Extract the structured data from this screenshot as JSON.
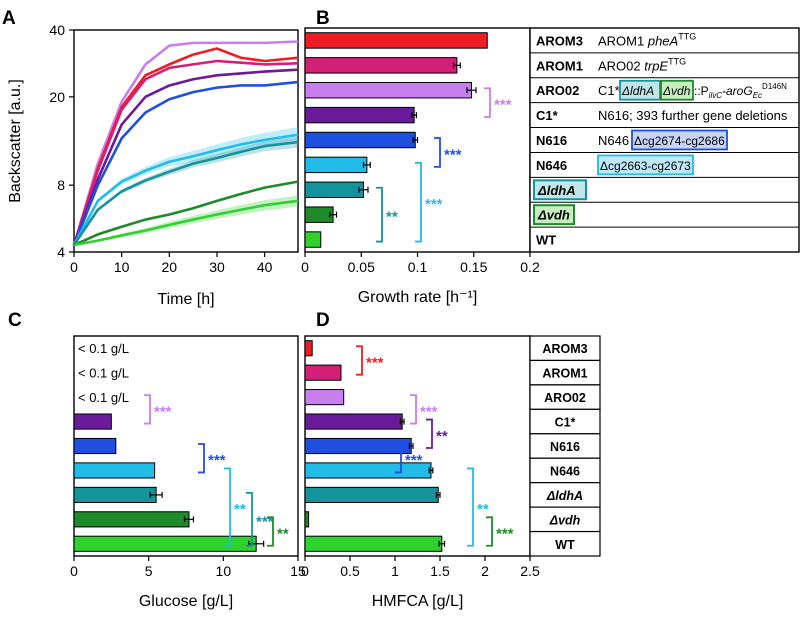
{
  "colors": {
    "AROM3": "#ee1c25",
    "AROM1": "#d31f75",
    "ARO02": "#c97ef0",
    "C1*": "#6a1b9a",
    "N616": "#1f4fe0",
    "N646": "#22bce8",
    "dldhA": "#15939d",
    "dvdh": "#1e8a2a",
    "WT": "#2ed12e"
  },
  "panel_labels": [
    "A",
    "B",
    "C",
    "D"
  ],
  "strain_table": {
    "rows": [
      {
        "key": "AROM3",
        "name": "AROM3",
        "pre": "AROM1 ",
        "gene": "pheA",
        "sup": "TTG"
      },
      {
        "key": "AROM1",
        "name": "AROM1",
        "pre": "ARO02 ",
        "gene": "trpE",
        "sup": "TTG"
      },
      {
        "key": "ARO02",
        "name": "ARO02",
        "pre": "C1*",
        "box1": "ΔldhA",
        "box2": "Δvdh",
        "post1": "::P",
        "sub1": "ilvC",
        "mid": "-aroG",
        "sub2": "Ec",
        "sup": "D146N"
      },
      {
        "key": "C1*",
        "name": "C1*",
        "text": "N616; 393 further gene deletions"
      },
      {
        "key": "N616",
        "name": "N616",
        "pre": "N646 ",
        "box": "Δcg2674-cg2686"
      },
      {
        "key": "N646",
        "name": "N646",
        "box": "Δcg2663-cg2673"
      },
      {
        "key": "dldhA",
        "name": "ΔldhA"
      },
      {
        "key": "dvdh",
        "name": "Δvdh"
      },
      {
        "key": "WT",
        "name": "WT"
      }
    ]
  },
  "chart_data": [
    {
      "panel": "A",
      "type": "line",
      "xlabel": "Time [h]",
      "ylabel": "Backscatter [a.u.]",
      "xlim": [
        0,
        47
      ],
      "ylim": [
        4,
        40
      ],
      "yscale": "log",
      "xticks": [
        0,
        10,
        20,
        30,
        40
      ],
      "yticks": [
        4,
        8,
        20,
        40
      ],
      "series": [
        {
          "name": "ARO02",
          "x": [
            0,
            5,
            10,
            15,
            20,
            25,
            30,
            35,
            40,
            47
          ],
          "values": [
            4.3,
            10,
            19,
            28,
            34,
            35,
            35,
            35,
            35,
            35.5
          ]
        },
        {
          "name": "AROM3",
          "x": [
            0,
            5,
            10,
            15,
            20,
            25,
            30,
            35,
            40,
            47
          ],
          "values": [
            4.3,
            9.5,
            18,
            25,
            28,
            31,
            33,
            30,
            29,
            30
          ]
        },
        {
          "name": "AROM1",
          "x": [
            0,
            5,
            10,
            15,
            20,
            25,
            30,
            35,
            40,
            47
          ],
          "values": [
            4.3,
            9.3,
            17.5,
            24,
            27,
            28,
            29,
            28.5,
            28,
            28.3
          ]
        },
        {
          "name": "C1*",
          "x": [
            0,
            5,
            10,
            15,
            20,
            25,
            30,
            35,
            40,
            47
          ],
          "values": [
            4.3,
            8.5,
            15,
            20,
            22.5,
            24,
            25,
            25.5,
            26,
            26.5
          ]
        },
        {
          "name": "N616",
          "x": [
            0,
            5,
            10,
            15,
            20,
            25,
            30,
            35,
            40,
            47
          ],
          "values": [
            4.3,
            8,
            13,
            17,
            19.5,
            21,
            22,
            22.5,
            22.5,
            23.3
          ]
        },
        {
          "name": "N646",
          "x": [
            0,
            5,
            10,
            15,
            20,
            25,
            30,
            35,
            40,
            47
          ],
          "values": [
            4.3,
            6.8,
            8.3,
            9.3,
            10.2,
            10.8,
            11.5,
            12.2,
            12.8,
            13.5
          ]
        },
        {
          "name": "dldhA",
          "x": [
            0,
            5,
            10,
            15,
            20,
            25,
            30,
            35,
            40,
            47
          ],
          "values": [
            4.3,
            6.2,
            7.5,
            8.4,
            9.2,
            10,
            10.6,
            11.3,
            12,
            12.5
          ]
        },
        {
          "name": "dvdh",
          "x": [
            0,
            5,
            10,
            15,
            20,
            25,
            30,
            35,
            40,
            47
          ],
          "values": [
            4.3,
            4.8,
            5.2,
            5.6,
            5.9,
            6.3,
            6.8,
            7.3,
            7.8,
            8.3
          ]
        },
        {
          "name": "WT",
          "x": [
            0,
            5,
            10,
            15,
            20,
            25,
            30,
            35,
            40,
            47
          ],
          "values": [
            4.3,
            4.5,
            4.75,
            5.0,
            5.3,
            5.6,
            5.9,
            6.2,
            6.5,
            6.8
          ]
        }
      ],
      "bands": {
        "N646": 1.1,
        "dldhA": 0.7,
        "WT": 0.4
      }
    },
    {
      "panel": "B",
      "type": "bar",
      "orientation": "horizontal",
      "xlabel": "Growth rate [h⁻¹]",
      "xlim": [
        0,
        0.2
      ],
      "xticks": [
        "0",
        "0.05",
        "0.1",
        "0.15",
        "0.2"
      ],
      "categories": [
        "AROM3",
        "AROM1",
        "ARO02",
        "C1*",
        "N616",
        "N646",
        "dldhA",
        "dvdh",
        "WT"
      ],
      "values": [
        0.162,
        0.135,
        0.148,
        0.097,
        0.098,
        0.055,
        0.052,
        0.025,
        0.014
      ],
      "errors": [
        0.0,
        0.003,
        0.004,
        0.002,
        0.002,
        0.003,
        0.004,
        0.003,
        0.0
      ],
      "significance": [
        {
          "from": "ARO02",
          "to": "C1*",
          "label": "***",
          "color": "#c97ef0"
        },
        {
          "from": "N616",
          "to": "N646",
          "label": "***",
          "color": "#1f4fe0"
        },
        {
          "from": "N646",
          "to": "WT",
          "label": "***",
          "color": "#22bce8"
        },
        {
          "from": "dldhA",
          "to": "WT",
          "label": "**",
          "color": "#15939d"
        }
      ]
    },
    {
      "panel": "C",
      "type": "bar",
      "orientation": "horizontal",
      "xlabel": "Glucose [g/L]",
      "xlim": [
        0,
        15
      ],
      "xticks": [
        "0",
        "5",
        "10",
        "15"
      ],
      "categories": [
        "AROM3",
        "AROM1",
        "ARO02",
        "C1*",
        "N616",
        "N646",
        "dldhA",
        "dvdh",
        "WT"
      ],
      "values": [
        0,
        0,
        0,
        2.5,
        2.8,
        5.4,
        5.5,
        7.7,
        12.2
      ],
      "errors": [
        0,
        0,
        0,
        0,
        0,
        0,
        0.4,
        0.3,
        0.5
      ],
      "below_labels": [
        {
          "row": "AROM3",
          "text": "< 0.1 g/L"
        },
        {
          "row": "AROM1",
          "text": "< 0.1 g/L"
        },
        {
          "row": "ARO02",
          "text": "< 0.1 g/L"
        }
      ],
      "significance": [
        {
          "from": "ARO02",
          "to": "C1*",
          "label": "***",
          "color": "#c97ef0"
        },
        {
          "from": "N616",
          "to": "N646",
          "label": "***",
          "color": "#1f4fe0"
        },
        {
          "from": "N646",
          "to": "WT",
          "label": "**",
          "color": "#22bce8"
        },
        {
          "from": "dldhA",
          "to": "WT",
          "label": "***",
          "color": "#15939d"
        },
        {
          "from": "dvdh",
          "to": "WT",
          "label": "**",
          "color": "#1e8a2a"
        }
      ]
    },
    {
      "panel": "D",
      "type": "bar",
      "orientation": "horizontal",
      "xlabel": "HMFCA [g/L]",
      "xlim": [
        0,
        2.5
      ],
      "xticks": [
        "0",
        "0.5",
        "1",
        "1.5",
        "2",
        "2.5"
      ],
      "categories": [
        "AROM3",
        "AROM1",
        "ARO02",
        "C1*",
        "N616",
        "N646",
        "dldhA",
        "dvdh",
        "WT"
      ],
      "values": [
        0.08,
        0.4,
        0.43,
        1.08,
        1.18,
        1.4,
        1.48,
        0.04,
        1.52
      ],
      "errors": [
        0,
        0,
        0,
        0.02,
        0.02,
        0.02,
        0.02,
        0,
        0.03
      ],
      "significance": [
        {
          "from": "AROM3",
          "to": "AROM1",
          "label": "***",
          "color": "#ee1c25"
        },
        {
          "from": "ARO02",
          "to": "C1*",
          "label": "***",
          "color": "#c97ef0"
        },
        {
          "from": "C1*",
          "to": "N616",
          "label": "**",
          "color": "#6a1b9a"
        },
        {
          "from": "N616",
          "to": "N646",
          "label": "***",
          "color": "#1f4fe0"
        },
        {
          "from": "N646",
          "to": "WT",
          "label": "**",
          "color": "#22bce8"
        },
        {
          "from": "dvdh",
          "to": "WT",
          "label": "***",
          "color": "#1e8a2a"
        }
      ],
      "row_labels": [
        "AROM3",
        "AROM1",
        "ARO02",
        "C1*",
        "N616",
        "N646",
        "ΔldhA",
        "Δvdh",
        "WT"
      ]
    }
  ]
}
